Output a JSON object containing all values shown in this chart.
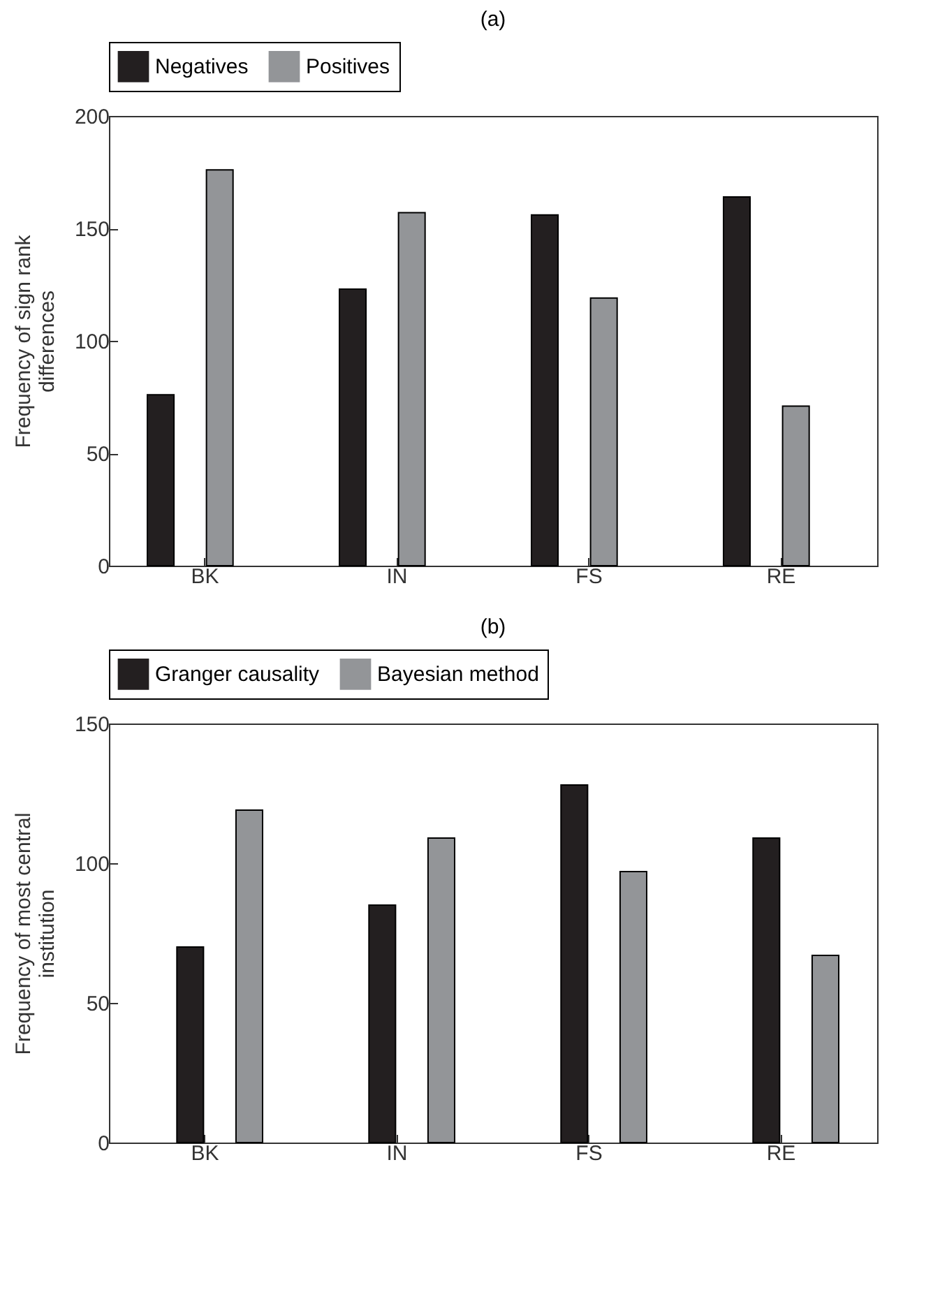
{
  "chart_data": [
    {
      "type": "bar",
      "title": "(a)",
      "ylabel": "Frequency of sign rank differences",
      "categories": [
        "BK",
        "IN",
        "FS",
        "RE"
      ],
      "series": [
        {
          "name": "Negatives",
          "color": "#231f20",
          "values": [
            76,
            123,
            156,
            164
          ]
        },
        {
          "name": "Positives",
          "color": "#939598",
          "values": [
            176,
            157,
            119,
            71
          ]
        }
      ],
      "ylim": [
        0,
        200
      ],
      "yticks": [
        0,
        50,
        100,
        150,
        200
      ],
      "legend": "top",
      "grid": false
    },
    {
      "type": "bar",
      "title": "(b)",
      "ylabel": "Frequency of most central institution",
      "categories": [
        "BK",
        "IN",
        "FS",
        "RE"
      ],
      "series": [
        {
          "name": "Granger causality",
          "color": "#231f20",
          "values": [
            70,
            85,
            128,
            109
          ]
        },
        {
          "name": "Bayesian method",
          "color": "#939598",
          "values": [
            119,
            109,
            97,
            67
          ]
        }
      ],
      "ylim": [
        0,
        150
      ],
      "yticks": [
        0,
        50,
        100,
        150
      ],
      "legend": "top",
      "grid": false
    }
  ]
}
